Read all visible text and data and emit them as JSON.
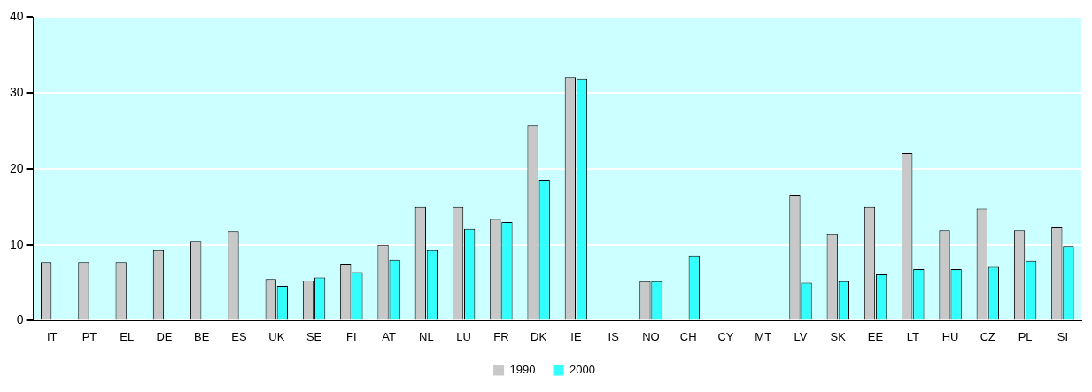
{
  "chart_data": {
    "type": "bar",
    "categories": [
      "IT",
      "PT",
      "EL",
      "DE",
      "BE",
      "ES",
      "UK",
      "SE",
      "FI",
      "AT",
      "NL",
      "LU",
      "FR",
      "DK",
      "IE",
      "IS",
      "NO",
      "CH",
      "CY",
      "MT",
      "LV",
      "SK",
      "EE",
      "LT",
      "HU",
      "CZ",
      "PL",
      "SI"
    ],
    "series": [
      {
        "name": "1990",
        "color": "#c8c8c8",
        "values": [
          7.7,
          7.7,
          7.7,
          9.3,
          10.5,
          11.8,
          5.5,
          5.3,
          7.5,
          10,
          15,
          15,
          13.4,
          25.8,
          32.1,
          null,
          5.2,
          null,
          null,
          null,
          16.6,
          11.4,
          15,
          22.1,
          11.9,
          14.8,
          11.9,
          12.3
        ]
      },
      {
        "name": "2000",
        "color": "#33ffff",
        "values": [
          null,
          null,
          null,
          null,
          null,
          null,
          4.6,
          5.7,
          6.4,
          8,
          9.3,
          12.1,
          13,
          18.6,
          31.9,
          null,
          5.2,
          8.6,
          null,
          null,
          5,
          5.2,
          6.1,
          6.8,
          6.8,
          7.1,
          7.9,
          9.8
        ]
      }
    ],
    "ylim": [
      0,
      40
    ],
    "yticks": [
      0,
      10,
      20,
      30,
      40
    ],
    "grid": "y",
    "legend": "bottom"
  }
}
